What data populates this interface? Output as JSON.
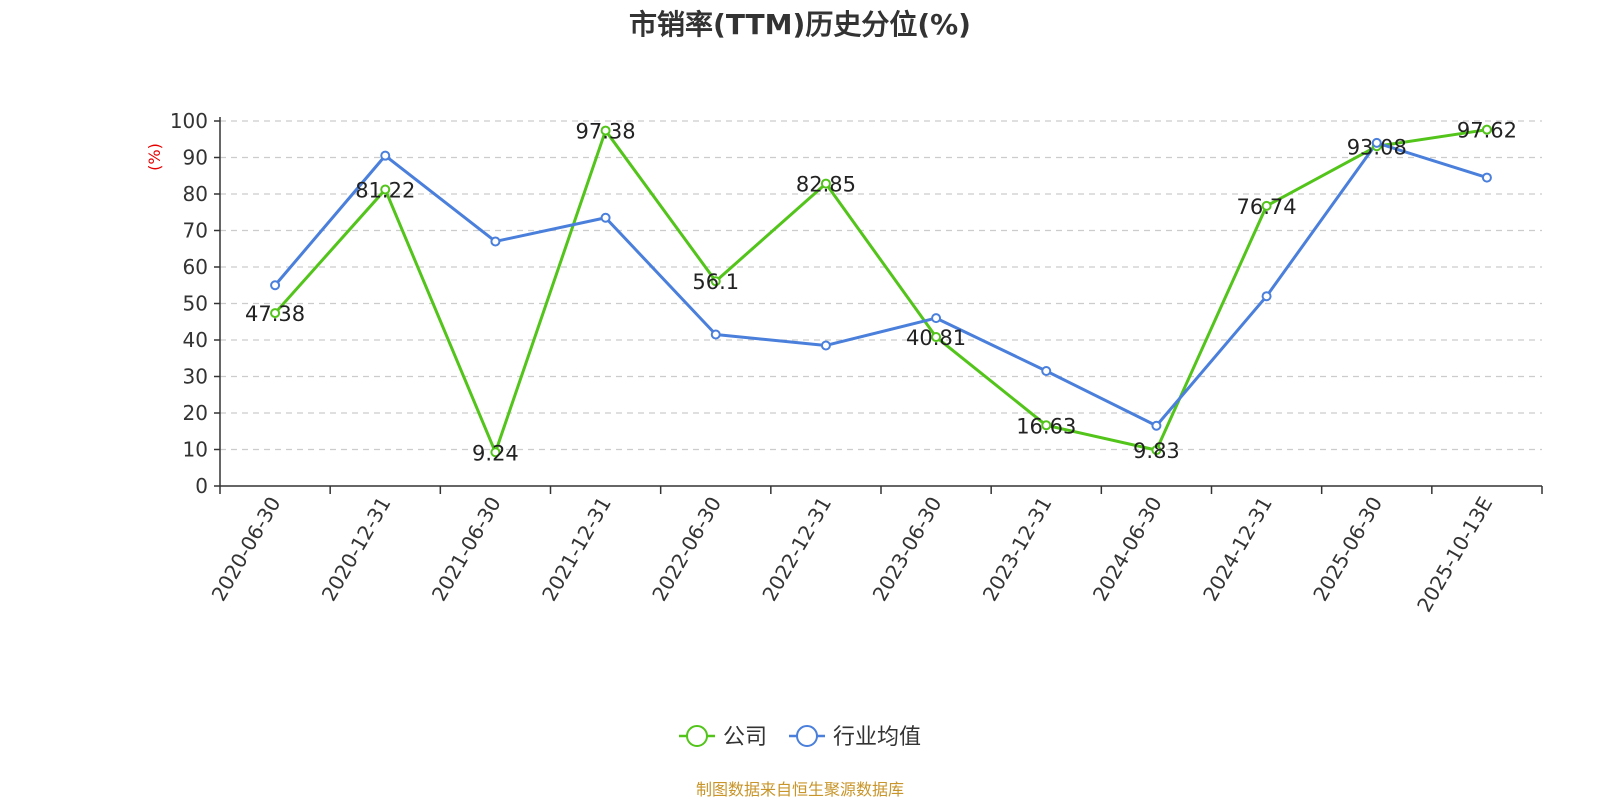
{
  "chart_data": {
    "type": "line",
    "title": "市销率(TTM)历史分位(%)",
    "ylabel": "(%)",
    "ylim": [
      0,
      100
    ],
    "yticks": [
      0,
      10,
      20,
      30,
      40,
      50,
      60,
      70,
      80,
      90,
      100
    ],
    "grid": true,
    "legend_position": "bottom-center",
    "categories": [
      "2020-06-30",
      "2020-12-31",
      "2021-06-30",
      "2021-12-31",
      "2022-06-30",
      "2022-12-31",
      "2023-06-30",
      "2023-12-31",
      "2024-06-30",
      "2024-12-31",
      "2025-06-30",
      "2025-10-13E"
    ],
    "series": [
      {
        "name": "公司",
        "color": "#52c41a",
        "values": [
          47.38,
          81.22,
          9.24,
          97.38,
          56.1,
          82.85,
          40.81,
          16.63,
          9.83,
          76.74,
          93.08,
          97.62
        ],
        "labels": [
          "47.38",
          "81.22",
          "9.24",
          "97.38",
          "56.1",
          "82.85",
          "40.81",
          "16.63",
          "9.83",
          "76.74",
          "93.08",
          "97.62"
        ]
      },
      {
        "name": "行业均值",
        "color": "#4a7fdc",
        "values": [
          55,
          90.5,
          67,
          73.5,
          41.5,
          38.5,
          46,
          31.5,
          16.5,
          52,
          94,
          84.5
        ]
      }
    ],
    "unit_color": "#e60000",
    "source_text": "制图数据来自恒生聚源数据库",
    "source_color": "#c8952a"
  }
}
